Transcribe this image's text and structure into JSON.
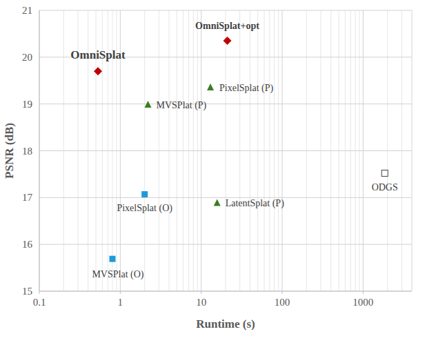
{
  "chart_data": {
    "type": "scatter",
    "x_label": "Runtime (s)",
    "y_label": "PSNR (dB)",
    "log": "x",
    "grid": true,
    "xlim": [
      0.1,
      4000
    ],
    "xticks": [
      0.1,
      1,
      10,
      100,
      1000
    ],
    "ylim": [
      15,
      21
    ],
    "yticks": [
      15,
      16,
      17,
      18,
      19,
      20,
      21
    ],
    "series": [
      {
        "name": "OmniSplat",
        "color": "#c00000",
        "marker": "diamond",
        "x": [
          0.53
        ],
        "values": [
          19.7
        ]
      },
      {
        "name": "OmniSplat+opt",
        "color": "#c00000",
        "marker": "diamond",
        "x": [
          21
        ],
        "values": [
          20.35
        ]
      },
      {
        "name": "PixelSplat (P)",
        "color": "#3b7d23",
        "marker": "triangle",
        "x": [
          13
        ],
        "values": [
          19.35
        ]
      },
      {
        "name": "MVSPlat (P)",
        "color": "#3b7d23",
        "marker": "triangle",
        "x": [
          2.2
        ],
        "values": [
          18.98
        ]
      },
      {
        "name": "PixelSplat (O)",
        "color": "#1e9bd7",
        "marker": "square",
        "x": [
          2.0
        ],
        "values": [
          17.07
        ]
      },
      {
        "name": "MVSPlat (O)",
        "color": "#1e9bd7",
        "marker": "square",
        "x": [
          0.8
        ],
        "values": [
          15.69
        ]
      },
      {
        "name": "LatentSplat (P)",
        "color": "#3b7d23",
        "marker": "triangle",
        "x": [
          15.7
        ],
        "values": [
          16.88
        ]
      },
      {
        "name": "ODGS",
        "color": "#404040",
        "marker": "square-open",
        "x": [
          1850
        ],
        "values": [
          17.52
        ]
      }
    ]
  }
}
